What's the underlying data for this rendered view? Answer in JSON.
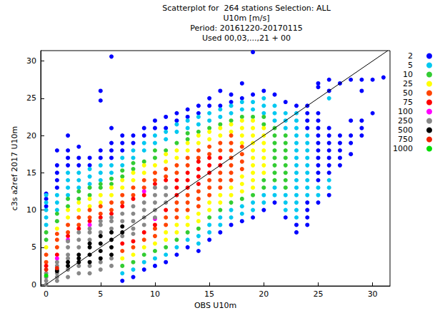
{
  "chart_data": {
    "type": "scatter",
    "title": "Scatterplot for  264 stations Selection: ALL",
    "subtitle": [
      "U10m [m/s]",
      "Period: 20161220-20170115",
      "Used 00,03,...,21 + 00"
    ],
    "x_label": "OBS U10m",
    "y_label": "c3s a2ref 2017 U10m",
    "xlim": [
      -0.5,
      31.6
    ],
    "ylim": [
      -0.2,
      31.4
    ],
    "xticks": [
      0,
      5,
      10,
      15,
      20,
      25,
      30
    ],
    "yticks": [
      0,
      5,
      10,
      15,
      20,
      25,
      30
    ],
    "grid": false,
    "legend": "right",
    "marker": "circle",
    "series": [
      {
        "name": "2",
        "color": "#0000ff",
        "x": [
          0,
          0,
          0,
          1,
          1,
          1,
          1,
          1,
          2,
          2,
          2,
          2,
          3,
          3,
          3,
          4,
          4,
          5,
          5,
          5,
          5,
          6,
          6,
          6,
          6,
          6,
          7,
          7,
          7,
          7,
          8,
          8,
          8,
          9,
          9,
          9,
          10,
          10,
          10,
          11,
          11,
          11,
          12,
          12,
          12,
          13,
          13,
          13,
          14,
          14,
          14,
          15,
          15,
          15,
          16,
          16,
          16,
          17,
          17,
          17,
          18,
          18,
          18,
          19,
          19,
          19,
          20,
          20,
          21,
          21,
          22,
          22,
          23,
          23,
          23,
          24,
          24,
          24,
          24,
          24,
          24,
          24,
          24,
          25,
          25,
          25,
          25,
          25,
          25,
          25,
          25,
          25,
          25,
          25,
          25,
          25,
          26,
          26,
          26,
          26,
          26,
          26,
          26,
          26,
          26,
          26,
          27,
          27,
          27,
          27,
          27,
          27,
          28,
          28,
          28,
          28,
          28,
          29,
          29,
          29,
          29,
          29,
          30,
          30,
          31
        ],
        "y": [
          10.5,
          11.5,
          12.2,
          13,
          14,
          15,
          16,
          18,
          16,
          17,
          18,
          20,
          16,
          17,
          18.5,
          16,
          17,
          17,
          18,
          24.7,
          26,
          17,
          18,
          19,
          21,
          30.6,
          0.5,
          18,
          19,
          20,
          1,
          19,
          20,
          2,
          20,
          21,
          2.5,
          21,
          22,
          3,
          21,
          22.5,
          4,
          22,
          23,
          5,
          22.5,
          23.5,
          4.5,
          23,
          24,
          6,
          24,
          25,
          7,
          24,
          26,
          8,
          24.5,
          25.5,
          8.5,
          25,
          27,
          9,
          25.5,
          31.2,
          10,
          26,
          11,
          25.5,
          9,
          24.5,
          7,
          8,
          24,
          8,
          9,
          10,
          11,
          21,
          22,
          23,
          24,
          11,
          14,
          15,
          16,
          17,
          18,
          19,
          20,
          21,
          22,
          23,
          26.5,
          27,
          12,
          15,
          16,
          17,
          18,
          19,
          20,
          21,
          26,
          27.5,
          16,
          17,
          18,
          19,
          20,
          27,
          17.5,
          19,
          20,
          22,
          27.5,
          20,
          21,
          22,
          26,
          27.5,
          23,
          27.5,
          27.8
        ]
      },
      {
        "name": "5",
        "color": "#00c8f0",
        "x": [
          0,
          0,
          0,
          0,
          0,
          1,
          1,
          1,
          2,
          2,
          2,
          2,
          3,
          3,
          3,
          4,
          4,
          4,
          5,
          5,
          5,
          6,
          6,
          7,
          7,
          7,
          8,
          8,
          8,
          9,
          9,
          9,
          10,
          10,
          10,
          11,
          11,
          11,
          12,
          12,
          12,
          13,
          13,
          13,
          14,
          14,
          14,
          14,
          15,
          15,
          15,
          15,
          16,
          16,
          16,
          16,
          17,
          17,
          17,
          17,
          18,
          18,
          18,
          18,
          19,
          19,
          19,
          19,
          20,
          20,
          20,
          20,
          20,
          21,
          21,
          21,
          21,
          21,
          22,
          22,
          22,
          22,
          22,
          22,
          23,
          23,
          23,
          23,
          23,
          23,
          23,
          23,
          23,
          23,
          23,
          23,
          23,
          23,
          23,
          24,
          24,
          24,
          24,
          24,
          24,
          24,
          24,
          24,
          25,
          25,
          26,
          26,
          26
        ],
        "y": [
          8,
          9,
          10,
          11,
          12,
          10,
          11,
          12,
          12,
          13,
          14,
          15,
          13,
          14,
          15,
          13.5,
          14.5,
          15.5,
          14,
          15,
          16,
          15,
          16,
          1.5,
          16,
          17,
          2,
          17,
          18,
          3,
          18,
          19,
          3.5,
          19,
          20,
          4,
          19.5,
          20.5,
          5,
          20.5,
          21.5,
          6,
          21,
          22,
          5.5,
          6.5,
          21.5,
          22.5,
          7,
          8,
          22,
          23,
          8,
          9,
          22.5,
          23.5,
          9,
          10,
          23,
          24,
          9.5,
          10.5,
          23.5,
          24.5,
          10,
          11,
          23.5,
          24.5,
          11,
          12,
          23,
          24,
          25,
          12,
          13,
          22,
          23,
          24,
          10,
          11,
          12,
          21,
          22,
          23,
          9,
          10,
          11,
          12,
          13,
          14,
          15,
          16,
          17,
          18,
          19,
          20,
          21,
          22,
          23,
          12,
          13,
          14,
          15,
          16,
          17,
          18,
          19,
          20,
          12,
          13,
          13,
          14,
          25
        ]
      },
      {
        "name": "10",
        "color": "#33cc33",
        "x": [
          0,
          0,
          1,
          1,
          2,
          2,
          3,
          3,
          4,
          4,
          5,
          5,
          6,
          6,
          7,
          7,
          7,
          8,
          8,
          8,
          9,
          9,
          10,
          10,
          10,
          11,
          11,
          12,
          12,
          13,
          13,
          13,
          14,
          14,
          15,
          15,
          16,
          16,
          17,
          17,
          18,
          18,
          19,
          19,
          20,
          20,
          20,
          20,
          21,
          21,
          21,
          21,
          21,
          21,
          21,
          21,
          22,
          22,
          22,
          22,
          22,
          22,
          22,
          22
        ],
        "y": [
          6,
          7,
          8.5,
          9.5,
          10.5,
          11.5,
          11.5,
          12.5,
          12,
          13,
          13,
          13.5,
          13.5,
          14.2,
          2.5,
          14.5,
          15.3,
          3,
          15.5,
          16.3,
          4,
          16.5,
          4.5,
          17,
          18,
          5,
          18,
          6,
          19,
          7,
          19.5,
          20.3,
          7.5,
          20.5,
          9,
          21,
          10,
          21.5,
          11,
          22,
          11.5,
          22.5,
          12,
          22.5,
          13,
          14,
          21.5,
          22.5,
          14,
          15,
          16,
          17,
          18,
          19,
          20,
          21,
          13,
          14,
          15,
          16,
          17,
          18,
          19,
          20
        ]
      },
      {
        "name": "25",
        "color": "#ffff00",
        "x": [
          0,
          1,
          2,
          2,
          3,
          3,
          4,
          4,
          5,
          5,
          6,
          6,
          7,
          7,
          7,
          8,
          8,
          8,
          9,
          9,
          9,
          10,
          10,
          11,
          11,
          11,
          11,
          12,
          12,
          12,
          12,
          13,
          13,
          13,
          13,
          14,
          14,
          14,
          14,
          15,
          15,
          15,
          15,
          16,
          16,
          16,
          16,
          17,
          17,
          17,
          17,
          18,
          18,
          18,
          18,
          18,
          18,
          18,
          19,
          19,
          19,
          19,
          19,
          19,
          19,
          19,
          19,
          19,
          20,
          20,
          20,
          20,
          20,
          20,
          20
        ],
        "y": [
          5,
          7.5,
          9,
          10,
          10,
          11,
          10.5,
          11.5,
          11,
          12,
          12,
          13,
          3.5,
          13,
          14,
          4,
          14,
          15,
          5,
          15,
          16,
          5.5,
          16,
          6,
          7,
          16.5,
          17.5,
          7,
          8,
          17,
          18,
          8,
          9,
          18,
          19,
          8.5,
          9.5,
          19,
          20,
          10,
          11,
          19.5,
          20.5,
          11,
          12,
          20,
          21,
          12,
          13,
          20.5,
          21.5,
          12.5,
          13.5,
          14.5,
          19,
          20,
          21,
          22,
          13,
          14,
          15,
          16,
          17,
          18,
          19,
          20,
          21,
          22,
          15,
          16,
          17,
          18,
          19,
          20,
          21
        ]
      },
      {
        "name": "50",
        "color": "#ff4400",
        "x": [
          0,
          0,
          1,
          1,
          1,
          2,
          2,
          3,
          3,
          4,
          4,
          5,
          5,
          6,
          6,
          7,
          7,
          7,
          8,
          8,
          8,
          9,
          9,
          9,
          10,
          10,
          10,
          10,
          11,
          11,
          11,
          11,
          12,
          12,
          12,
          12,
          12,
          13,
          13,
          13,
          13,
          13,
          14,
          14,
          14,
          14,
          14,
          15,
          15,
          15,
          15,
          15,
          16,
          16,
          16,
          16,
          16,
          17,
          17,
          17,
          17,
          17,
          17,
          17,
          18,
          18,
          18,
          18
        ],
        "y": [
          3,
          4,
          5,
          6,
          6.8,
          7,
          8,
          8,
          9,
          9,
          10,
          9.5,
          10.5,
          10,
          11,
          4.5,
          11,
          12,
          5,
          12,
          13,
          6,
          13,
          14,
          6.5,
          7.5,
          14,
          15,
          8,
          9,
          14.5,
          15.5,
          9,
          10,
          11,
          15,
          16,
          10,
          11,
          12,
          16,
          17,
          10.5,
          11.5,
          12.5,
          17,
          18,
          12,
          13,
          14,
          17.5,
          18.5,
          13,
          14,
          15,
          18,
          19,
          14,
          15,
          16,
          17,
          18,
          19,
          20,
          15.5,
          16.5,
          17.5,
          18.5
        ]
      },
      {
        "name": "75",
        "color": "#ff0000",
        "x": [
          0,
          1,
          2,
          3,
          4,
          5,
          6,
          7,
          7,
          8,
          8,
          9,
          9,
          10,
          10,
          11,
          11,
          12,
          12,
          12,
          13,
          13,
          13,
          14,
          14,
          14,
          14,
          15,
          15,
          15,
          16,
          16
        ],
        "y": [
          2.5,
          4,
          6.5,
          7.5,
          8.5,
          9,
          9.5,
          5.5,
          10.5,
          5.8,
          11.5,
          7,
          12,
          8,
          13.5,
          10,
          14,
          12,
          13,
          14,
          13,
          14,
          15,
          13.5,
          14.5,
          15.5,
          16.5,
          15,
          16,
          17,
          16,
          17
        ]
      },
      {
        "name": "100",
        "color": "#ff00ff",
        "x": [
          1,
          2,
          4,
          9,
          10
        ],
        "y": [
          3.5,
          6,
          8,
          12.5,
          8.8
        ]
      },
      {
        "name": "250",
        "color": "#888888",
        "x": [
          0,
          0,
          0,
          0,
          1,
          1,
          1,
          1,
          1,
          1,
          2,
          2,
          2,
          2,
          2,
          2,
          3,
          3,
          3,
          3,
          3,
          4,
          4,
          4,
          4,
          4,
          5,
          5,
          5,
          5,
          5,
          6,
          6,
          6,
          6,
          6,
          7,
          7,
          7,
          8,
          8,
          8,
          8,
          8,
          9,
          9,
          9,
          9,
          10,
          10,
          10,
          10,
          10,
          11,
          11,
          11
        ],
        "y": [
          0,
          0.5,
          1,
          1.5,
          0.5,
          1,
          1.5,
          2,
          2.5,
          3,
          1,
          2,
          3.5,
          4,
          5,
          5.8,
          1.5,
          2.5,
          5,
          6,
          7,
          1.5,
          2.5,
          6,
          7,
          7.5,
          2,
          3,
          7,
          8,
          8.5,
          2.5,
          3.5,
          7.5,
          8.5,
          9,
          6.5,
          8.5,
          9.5,
          6.8,
          7.5,
          8.5,
          9.5,
          10.5,
          8,
          9,
          10,
          11,
          9,
          10,
          11,
          12,
          13,
          11,
          12,
          13
        ]
      },
      {
        "name": "500",
        "color": "#000000",
        "x": [
          1,
          2,
          2,
          3,
          3,
          3,
          4,
          4,
          4,
          4,
          5,
          5,
          5,
          5,
          6,
          6,
          6,
          6,
          7,
          7
        ],
        "y": [
          1.8,
          2.5,
          3,
          3,
          3.5,
          4,
          3,
          4,
          5,
          5.5,
          3.5,
          4.5,
          5.5,
          6.5,
          4,
          5,
          6,
          7,
          7,
          7.8
        ]
      },
      {
        "name": "750",
        "color": "#ee2200",
        "x": [
          0,
          1
        ],
        "y": [
          2,
          2.2
        ]
      },
      {
        "name": "1000",
        "color": "#00dd00",
        "x": [
          0
        ],
        "y": [
          1.2
        ]
      },
      {
        "type": "line",
        "color": "#000000",
        "x": [
          0,
          31.4
        ],
        "y": [
          0,
          31.4
        ]
      }
    ]
  }
}
